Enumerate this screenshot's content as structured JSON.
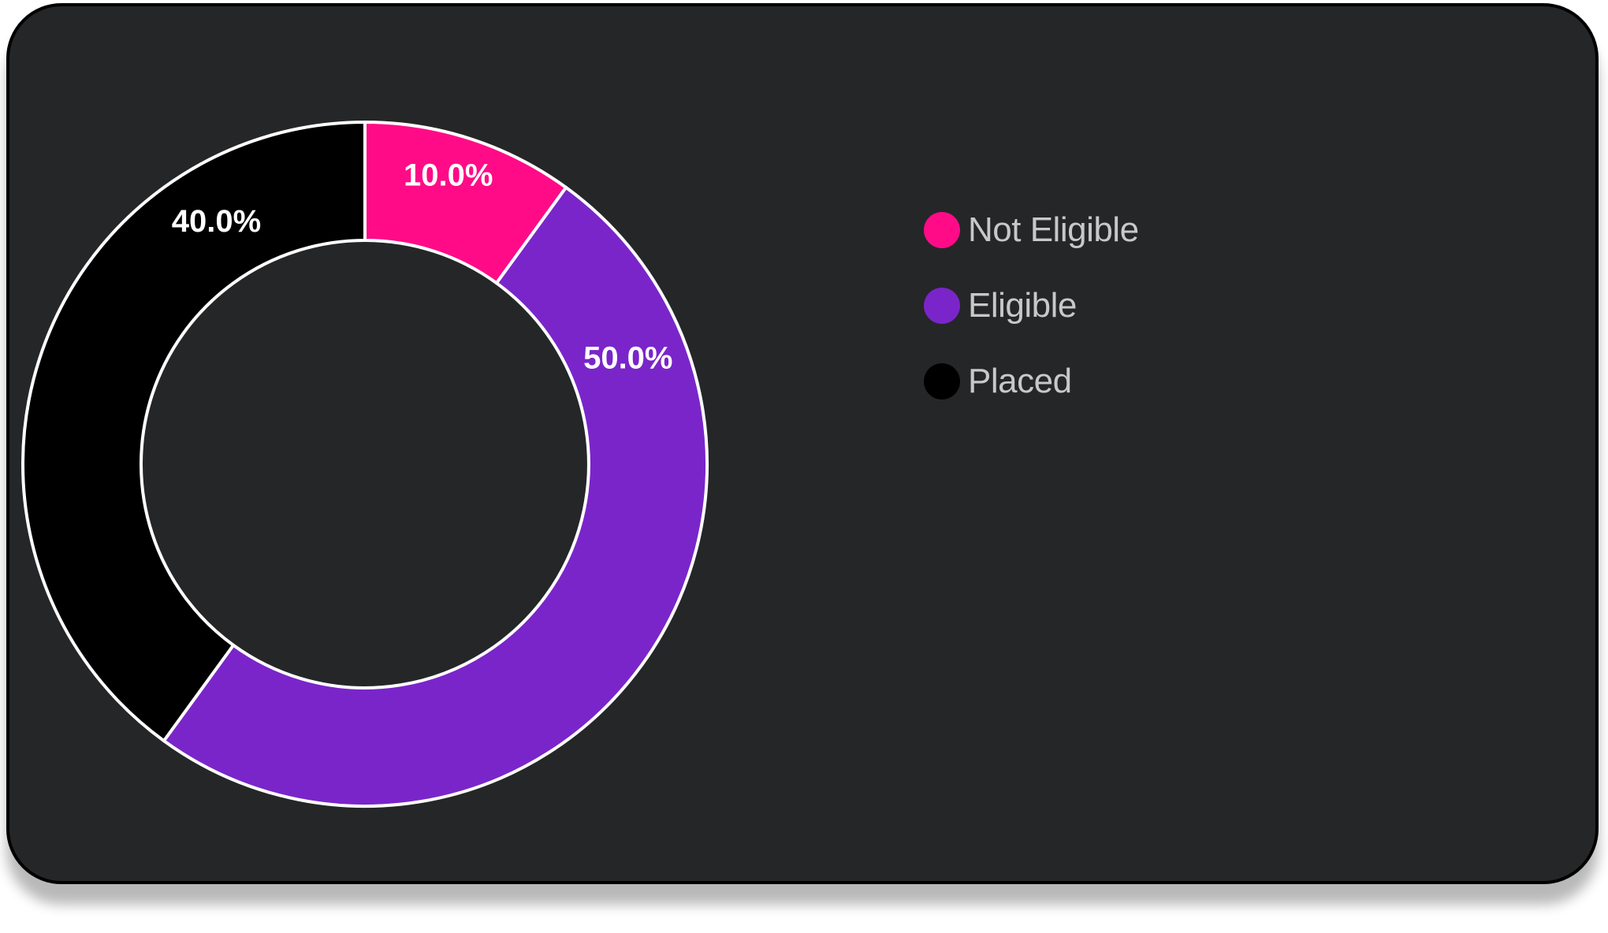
{
  "chart_data": {
    "type": "pie",
    "donut": true,
    "labels": [
      "Not Eligible",
      "Eligible",
      "Placed"
    ],
    "values": [
      10.0,
      50.0,
      40.0
    ],
    "value_labels": [
      "10.0%",
      "50.0%",
      "40.0%"
    ],
    "colors": [
      "#ff0b87",
      "#7a25c9",
      "#000000"
    ],
    "legend_position": "right",
    "title": ""
  },
  "colors": {
    "card_background": "#252628",
    "slice_border": "#ffffff",
    "legend_text": "#c8c8c8"
  }
}
